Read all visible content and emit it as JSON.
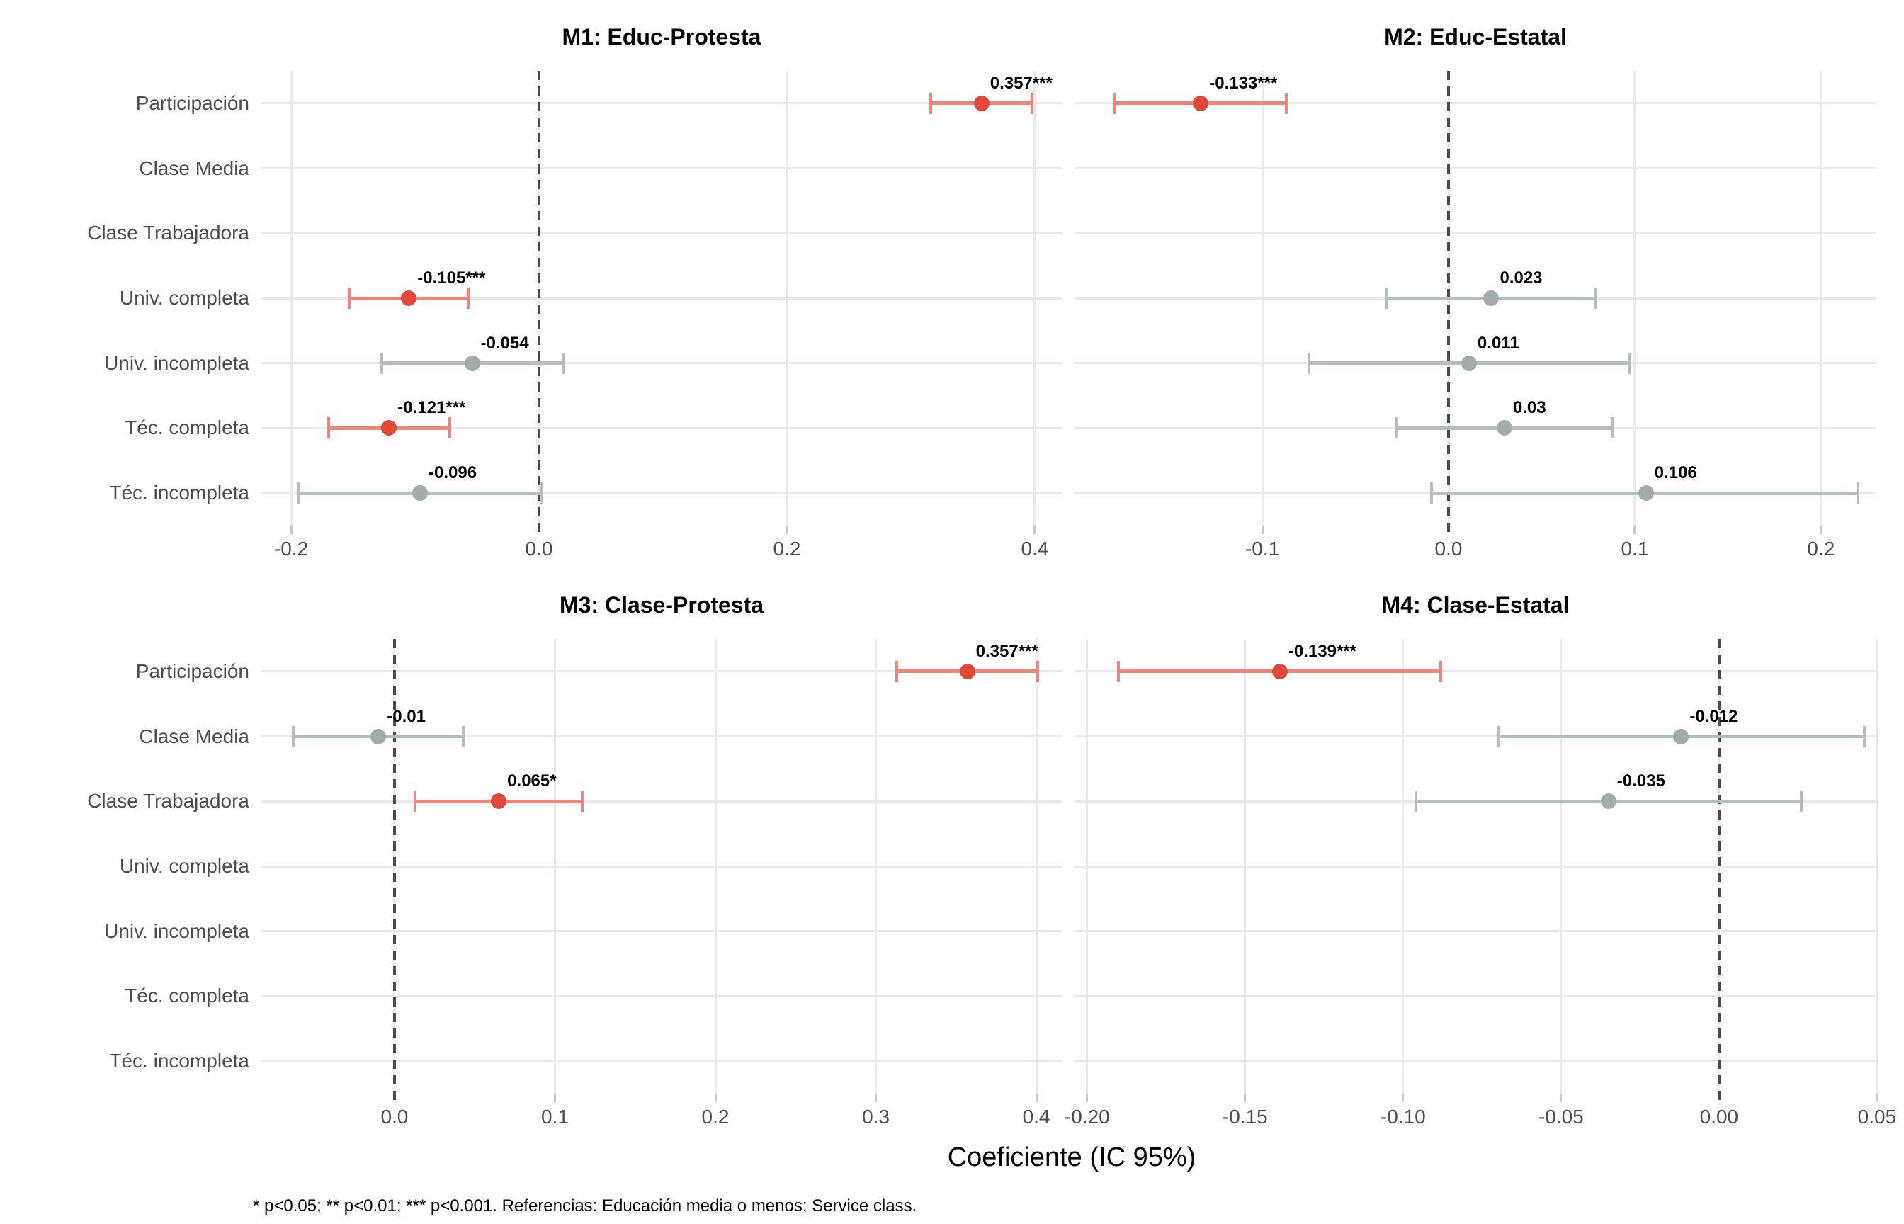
{
  "figure": {
    "background": "#ffffff",
    "colors": {
      "significant_point": "#e2483a",
      "significant_bar": "#f0867b",
      "nonsignificant_point": "#9fabad",
      "nonsignificant_bar": "#b2bec0",
      "grid": "#e9e9e9",
      "zero_line": "#4b4b4b",
      "axis_text": "#4d4d4d",
      "value_label_text": "#000000",
      "tick_mark": "#c9c9c9"
    }
  },
  "chart_data": {
    "type": "dot-whisker coefficient plot (4 facets, 95% CI error bars, dashed zero reference line)",
    "x_axis_title": "Coeficiente (IC 95%)",
    "footnote": "* p<0.05; ** p<0.01; *** p<0.001. Referencias: Educación media o menos; Service class.",
    "categories": [
      "Participación",
      "Clase Media",
      "Clase Trabajadora",
      "Univ. completa",
      "Univ. incompleta",
      "Téc. completa",
      "Téc. incompleta"
    ],
    "legend_position": "none",
    "grid": "major gridlines on, light gray",
    "panels": [
      {
        "id": "m1",
        "title": "M1: Educ-Protesta",
        "xlim": [
          -0.2246,
          0.4223
        ],
        "zero_line": 0,
        "ticks": [
          {
            "value": -0.2,
            "label": "-0.2"
          },
          {
            "value": 0.0,
            "label": "0.0"
          },
          {
            "value": 0.2,
            "label": "0.2"
          },
          {
            "value": 0.4,
            "label": "0.4"
          }
        ],
        "estimates": [
          {
            "category": "Participación",
            "value": 0.357,
            "label": "0.357***",
            "ci_low": 0.316,
            "ci_high": 0.398,
            "significant": true
          },
          {
            "category": "Univ. completa",
            "value": -0.105,
            "label": "-0.105***",
            "ci_low": -0.153,
            "ci_high": -0.057,
            "significant": true
          },
          {
            "category": "Univ. incompleta",
            "value": -0.054,
            "label": "-0.054",
            "ci_low": -0.127,
            "ci_high": 0.02,
            "significant": false
          },
          {
            "category": "Téc. completa",
            "value": -0.121,
            "label": "-0.121***",
            "ci_low": -0.17,
            "ci_high": -0.072,
            "significant": true
          },
          {
            "category": "Téc. incompleta",
            "value": -0.096,
            "label": "-0.096",
            "ci_low": -0.194,
            "ci_high": 0.002,
            "significant": false
          }
        ]
      },
      {
        "id": "m2",
        "title": "M2: Educ-Estatal",
        "xlim": [
          -0.2008,
          0.2297
        ],
        "zero_line": 0,
        "ticks": [
          {
            "value": -0.1,
            "label": "-0.1"
          },
          {
            "value": 0.0,
            "label": "0.0"
          },
          {
            "value": 0.1,
            "label": "0.1"
          },
          {
            "value": 0.2,
            "label": "0.2"
          }
        ],
        "estimates": [
          {
            "category": "Participación",
            "value": -0.133,
            "label": "-0.133***",
            "ci_low": -0.179,
            "ci_high": -0.087,
            "significant": true
          },
          {
            "category": "Univ. completa",
            "value": 0.023,
            "label": "0.023",
            "ci_low": -0.033,
            "ci_high": 0.079,
            "significant": false
          },
          {
            "category": "Univ. incompleta",
            "value": 0.011,
            "label": "0.011",
            "ci_low": -0.075,
            "ci_high": 0.097,
            "significant": false
          },
          {
            "category": "Téc. completa",
            "value": 0.03,
            "label": "0.03",
            "ci_low": -0.028,
            "ci_high": 0.088,
            "significant": false
          },
          {
            "category": "Téc. incompleta",
            "value": 0.106,
            "label": "0.106",
            "ci_low": -0.009,
            "ci_high": 0.22,
            "significant": false
          }
        ]
      },
      {
        "id": "m3",
        "title": "M3: Clase-Protesta",
        "xlim": [
          -0.0834,
          0.4163
        ],
        "zero_line": 0,
        "ticks": [
          {
            "value": 0.0,
            "label": "0.0"
          },
          {
            "value": 0.1,
            "label": "0.1"
          },
          {
            "value": 0.2,
            "label": "0.2"
          },
          {
            "value": 0.3,
            "label": "0.3"
          },
          {
            "value": 0.4,
            "label": "0.4"
          }
        ],
        "estimates": [
          {
            "category": "Participación",
            "value": 0.357,
            "label": "0.357***",
            "ci_low": 0.313,
            "ci_high": 0.401,
            "significant": true
          },
          {
            "category": "Clase Media",
            "value": -0.01,
            "label": "-0.01",
            "ci_low": -0.063,
            "ci_high": 0.043,
            "significant": false
          },
          {
            "category": "Clase Trabajadora",
            "value": 0.065,
            "label": "0.065*",
            "ci_low": 0.013,
            "ci_high": 0.117,
            "significant": true
          }
        ]
      },
      {
        "id": "m4",
        "title": "M4: Clase-Estatal",
        "xlim": [
          -0.204,
          0.0498
        ],
        "zero_line": 0,
        "ticks": [
          {
            "value": -0.2,
            "label": "-0.20"
          },
          {
            "value": -0.15,
            "label": "-0.15"
          },
          {
            "value": -0.1,
            "label": "-0.10"
          },
          {
            "value": -0.05,
            "label": "-0.05"
          },
          {
            "value": 0.0,
            "label": "0.00"
          },
          {
            "value": 0.05,
            "label": "0.05"
          }
        ],
        "estimates": [
          {
            "category": "Participación",
            "value": -0.139,
            "label": "-0.139***",
            "ci_low": -0.19,
            "ci_high": -0.088,
            "significant": true
          },
          {
            "category": "Clase Media",
            "value": -0.012,
            "label": "-0.012",
            "ci_low": -0.07,
            "ci_high": 0.046,
            "significant": false
          },
          {
            "category": "Clase Trabajadora",
            "value": -0.035,
            "label": "-0.035",
            "ci_low": -0.096,
            "ci_high": 0.026,
            "significant": false
          }
        ]
      }
    ]
  }
}
